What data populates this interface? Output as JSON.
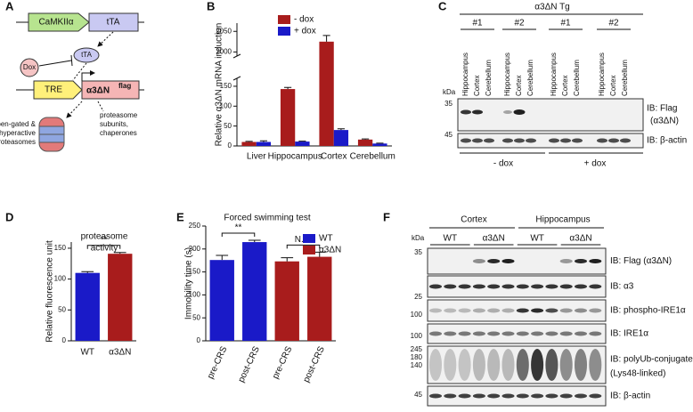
{
  "panel_labels": [
    "A",
    "B",
    "C",
    "D",
    "E",
    "F"
  ],
  "diagram_a": {
    "promoter": "CaMKIIα",
    "tta_gene": "tTA",
    "tta_protein": "tTA",
    "dox": "Dox",
    "tre": "TRE",
    "transgene": "α3ΔN",
    "transgene_tag": "flag",
    "proteasome_lines": [
      "open-gated &",
      "hyperactive",
      "proteasomes"
    ],
    "products_lines": [
      "proteasome",
      "subunits,",
      "chaperones"
    ]
  },
  "chart_data": [
    {
      "type": "bar",
      "ylabel": "Relative α3ΔN mRNA induction",
      "categories": [
        "Liver",
        "Hippocampus",
        "Cortex",
        "Cerebellum"
      ],
      "series": [
        {
          "name": "- dox",
          "color": "#a81c1c",
          "values": [
            10,
            143,
            2025,
            16
          ],
          "errors": [
            1.5,
            4,
            15,
            1.5
          ]
        },
        {
          "name": "+ dox",
          "color": "#1a1ac8",
          "values": [
            10,
            11,
            40,
            6
          ],
          "errors": [
            3,
            1,
            3,
            1
          ]
        }
      ],
      "ylim": [
        0,
        2070
      ],
      "axis_break": [
        170,
        1990
      ],
      "yticks": [
        0,
        50,
        100,
        150,
        2000,
        2050
      ],
      "legend": "top-left"
    },
    {
      "type": "bar",
      "title": [
        "proteasome",
        "activity"
      ],
      "ylabel": "Relative fluorescence unit",
      "categories": [
        "WT",
        "α3ΔN"
      ],
      "values": [
        110,
        141
      ],
      "errors": [
        2,
        2
      ],
      "colors": [
        "#1a1ac8",
        "#a81c1c"
      ],
      "ylim": [
        0,
        160
      ],
      "yticks": [
        0,
        50,
        100,
        150
      ],
      "annotations": [
        "**"
      ]
    },
    {
      "type": "bar",
      "title": [
        "Forced swimming test"
      ],
      "ylabel": "Immobility time (s)",
      "categories": [
        "pre-CRS",
        "post-CRS",
        "pre-CRS",
        "post-CRS"
      ],
      "series": [
        {
          "name": "WT",
          "color": "#1a1ac8",
          "values": [
            176,
            215,
            null,
            null
          ],
          "errors": [
            10,
            4,
            null,
            null
          ]
        },
        {
          "name": "α3ΔN",
          "color": "#a81c1c",
          "values": [
            null,
            null,
            173,
            183
          ],
          "errors": [
            null,
            null,
            8,
            10
          ]
        }
      ],
      "ylim": [
        0,
        250
      ],
      "yticks": [
        0,
        50,
        100,
        150,
        200,
        250
      ],
      "annotations": [
        "**",
        "N.S."
      ],
      "legend": "top-right"
    }
  ],
  "blot_c": {
    "header": "α3ΔN Tg",
    "lines": [
      "#1",
      "#2",
      "#1",
      "#2"
    ],
    "lanes": [
      "Hippocampus",
      "Cortex",
      "Cerebellum"
    ],
    "kda": "kDa",
    "markers": [
      "35",
      "45"
    ],
    "probes": [
      [
        "IB: Flag",
        "(α3ΔN)"
      ],
      [
        "IB: β-actin"
      ]
    ],
    "conditions": [
      "- dox",
      "+ dox"
    ]
  },
  "blot_f": {
    "tissues": [
      "Cortex",
      "Hippocampus"
    ],
    "genotypes": [
      "WT",
      "α3ΔN",
      "WT",
      "α3ΔN"
    ],
    "kda": "kDa",
    "markers": [
      [
        "35"
      ],
      [
        "25"
      ],
      [
        "100"
      ],
      [
        "100"
      ],
      [
        "245",
        "180",
        "140"
      ],
      [
        "45"
      ]
    ],
    "probes": [
      [
        "IB: Flag (α3ΔN)"
      ],
      [
        "IB: α3"
      ],
      [
        "IB: phospho-IRE1α"
      ],
      [
        "IB: IRE1α"
      ],
      [
        "IB: polyUb-conjugates",
        "(Lys48-linked)"
      ],
      [
        "IB: β-actin"
      ]
    ]
  }
}
